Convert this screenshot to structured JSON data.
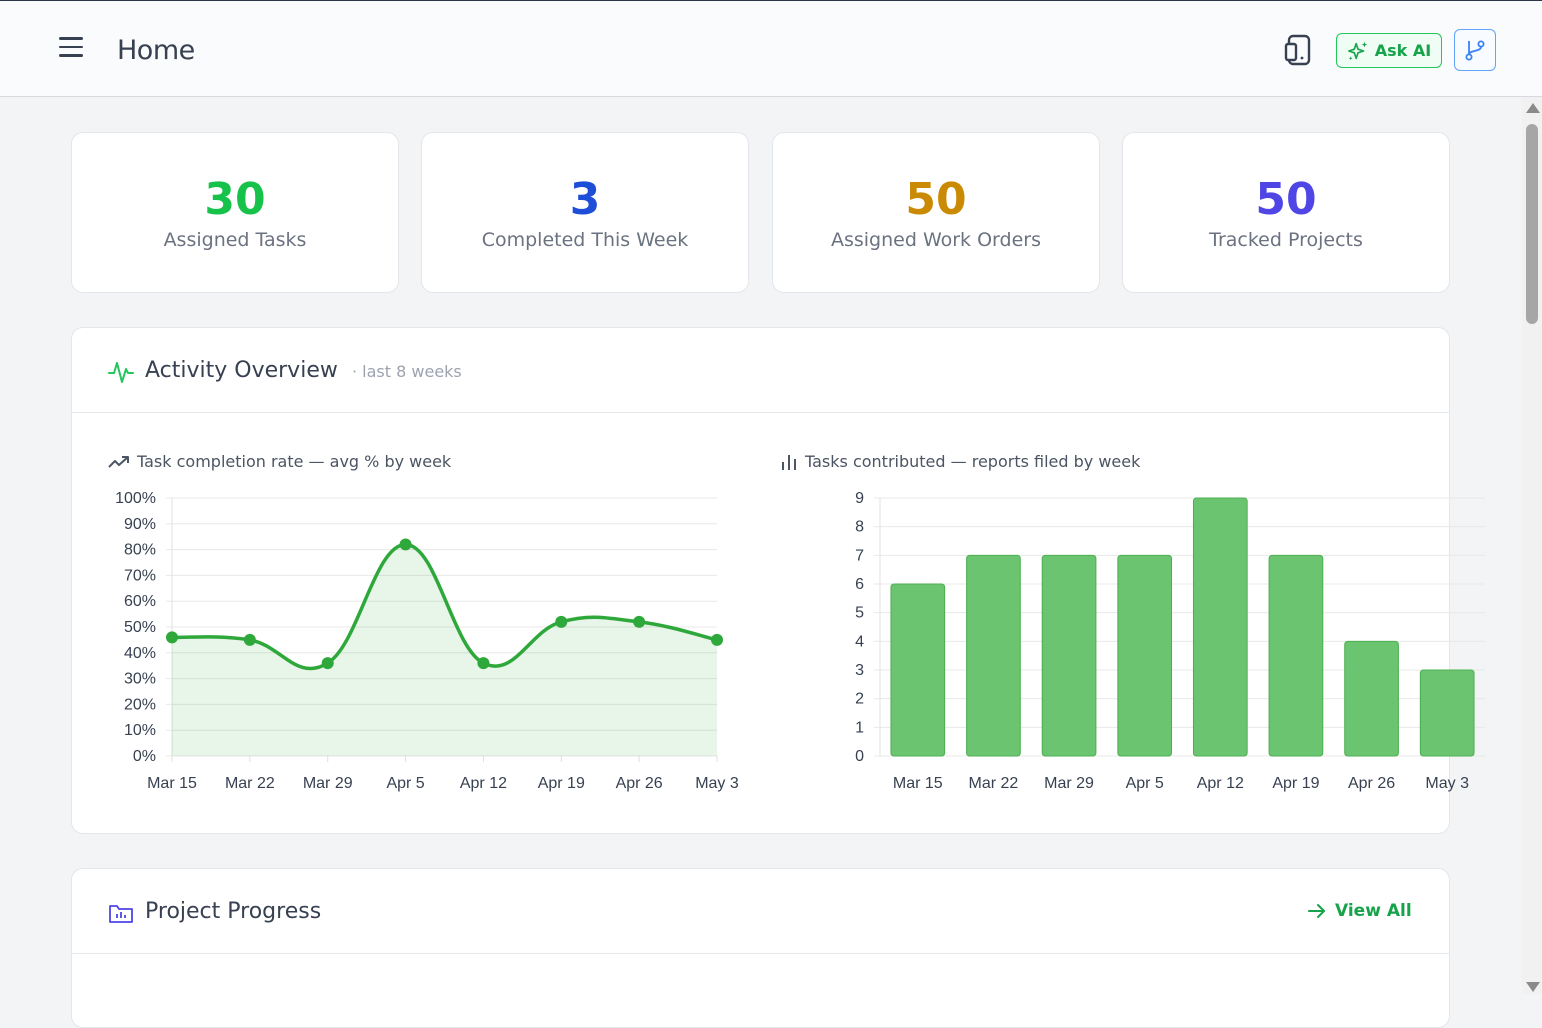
{
  "header": {
    "title": "Home",
    "menu_icon": "hamburger-menu-icon",
    "tablet_icon": "tablet-icon",
    "ask_ai_label": "Ask AI",
    "ask_ai_icon": "sparkles-icon",
    "branch_icon": "git-branch-icon"
  },
  "stats": [
    {
      "value": "30",
      "label": "Assigned Tasks",
      "color": "#16c24a"
    },
    {
      "value": "3",
      "label": "Completed This Week",
      "color": "#1d4ed8"
    },
    {
      "value": "50",
      "label": "Assigned Work Orders",
      "color": "#ca8a04"
    },
    {
      "value": "50",
      "label": "Tracked Projects",
      "color": "#4f46e5"
    }
  ],
  "activity": {
    "title": "Activity Overview",
    "subtitle": "· last 8 weeks",
    "icon": "activity-pulse-icon",
    "line_caption": "Task completion rate — avg % by week",
    "line_icon": "trending-up-icon",
    "bar_caption": "Tasks contributed — reports filed by week",
    "bar_icon": "bar-chart-icon"
  },
  "chart_data": [
    {
      "type": "area",
      "title": "Task completion rate — avg % by week",
      "categories": [
        "Mar 15",
        "Mar 22",
        "Mar 29",
        "Apr 5",
        "Apr 12",
        "Apr 19",
        "Apr 26",
        "May 3"
      ],
      "values": [
        46,
        45,
        36,
        82,
        36,
        52,
        52,
        45
      ],
      "ylim": [
        0,
        100
      ],
      "yticks": [
        "0%",
        "10%",
        "20%",
        "30%",
        "40%",
        "50%",
        "60%",
        "70%",
        "80%",
        "90%",
        "100%"
      ],
      "grid": true,
      "color": "#2ea83a"
    },
    {
      "type": "bar",
      "title": "Tasks contributed — reports filed by week",
      "categories": [
        "Mar 15",
        "Mar 22",
        "Mar 29",
        "Apr 5",
        "Apr 12",
        "Apr 19",
        "Apr 26",
        "May 3"
      ],
      "values": [
        6,
        7,
        7,
        7,
        9,
        7,
        4,
        3
      ],
      "ylim": [
        0,
        9
      ],
      "yticks": [
        "0",
        "1",
        "2",
        "3",
        "4",
        "5",
        "6",
        "7",
        "8",
        "9"
      ],
      "grid": true,
      "color": "#6bc46f"
    }
  ],
  "projects": {
    "title": "Project Progress",
    "icon": "folder-chart-icon",
    "view_all_label": "View All",
    "view_all_icon": "arrow-right-icon"
  }
}
